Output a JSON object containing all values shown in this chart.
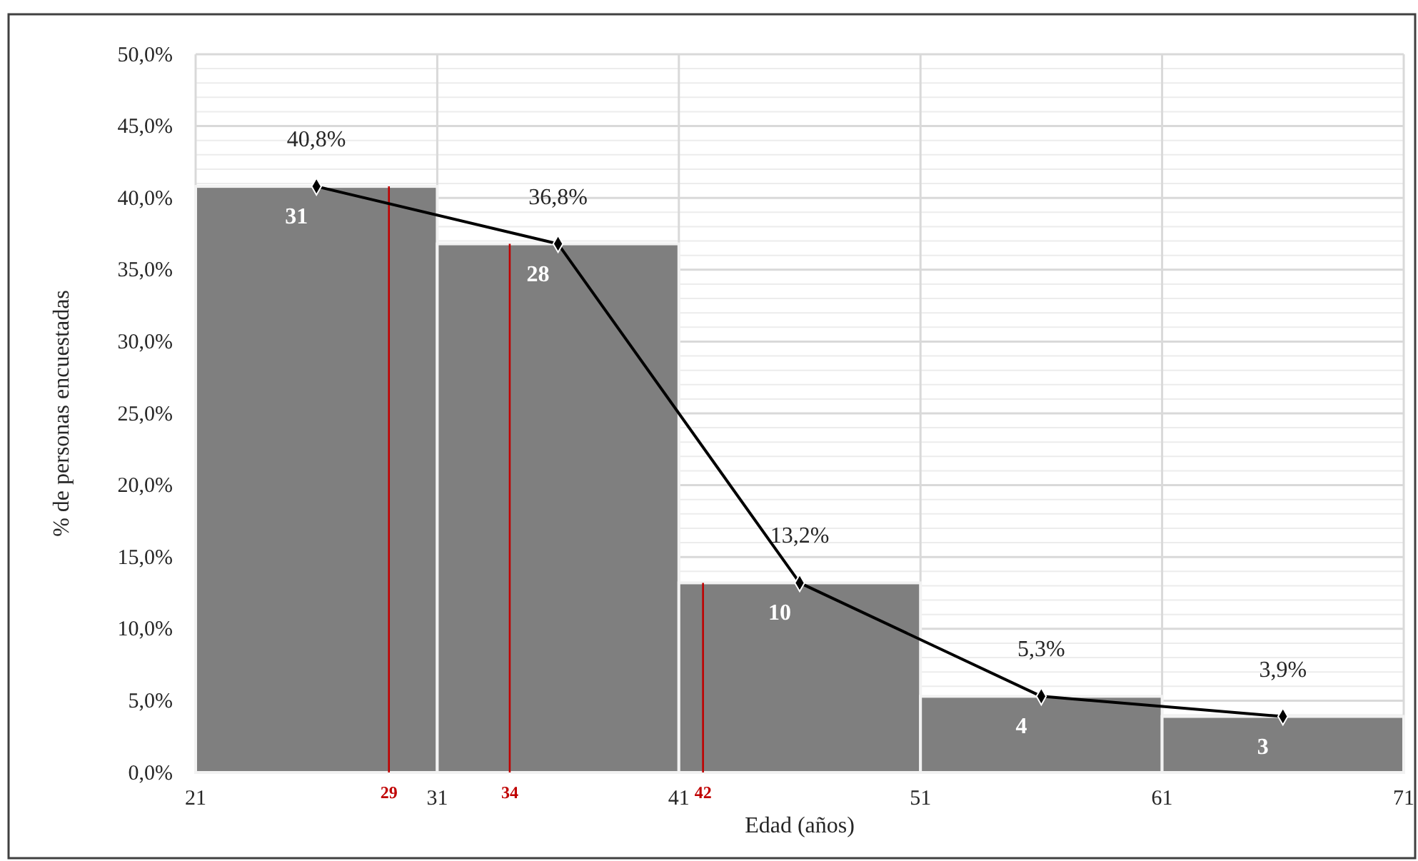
{
  "chart_data": {
    "type": "histogram",
    "xlabel": "Edad (años)",
    "ylabel": "% de personas encuestadas",
    "bins": [
      21,
      31,
      41,
      51,
      61,
      71
    ],
    "series": [
      {
        "color": "#7f7f7f",
        "values": [
          40.8,
          36.8,
          13.2,
          5.3,
          3.9
        ]
      },
      {
        "type": "line",
        "color": "#000000",
        "marker": "diamond",
        "x": [
          26,
          36,
          46,
          56,
          66
        ],
        "values": [
          40.8,
          36.8,
          13.2,
          5.3,
          3.9
        ],
        "value_labels": [
          "40,8%",
          "36,8%",
          "13,2%",
          "5,3%",
          "3,9%"
        ]
      }
    ],
    "ref_lines": [
      {
        "axis": "x",
        "value": 29,
        "label": "29",
        "color": "#c00000"
      },
      {
        "axis": "x",
        "value": 34,
        "label": "34",
        "color": "#c00000"
      },
      {
        "axis": "x",
        "value": 42,
        "label": "42",
        "color": "#c00000"
      }
    ],
    "xlim": [
      21,
      71
    ],
    "xticks": [
      21,
      31,
      41,
      51,
      61,
      71
    ],
    "ylim": [
      0,
      50
    ],
    "yticks": [
      {
        "value": 0,
        "label": "0,0%"
      },
      {
        "value": 5,
        "label": "5,0%"
      },
      {
        "value": 10,
        "label": "10,0%"
      },
      {
        "value": 15,
        "label": "15,0%"
      },
      {
        "value": 20,
        "label": "20,0%"
      },
      {
        "value": 25,
        "label": "25,0%"
      },
      {
        "value": 30,
        "label": "30,0%"
      },
      {
        "value": 35,
        "label": "35,0%"
      },
      {
        "value": 40,
        "label": "40,0%"
      },
      {
        "value": 45,
        "label": "45,0%"
      },
      {
        "value": 50,
        "label": "50,0%"
      }
    ],
    "annotations": [
      {
        "text": "31",
        "x": 26,
        "y": 40.8
      },
      {
        "text": "28",
        "x": 36,
        "y": 36.8
      },
      {
        "text": "10",
        "x": 46,
        "y": 13.2
      },
      {
        "text": "4",
        "x": 56,
        "y": 5.3
      },
      {
        "text": "3",
        "x": 66,
        "y": 3.9
      }
    ],
    "grid": true
  }
}
